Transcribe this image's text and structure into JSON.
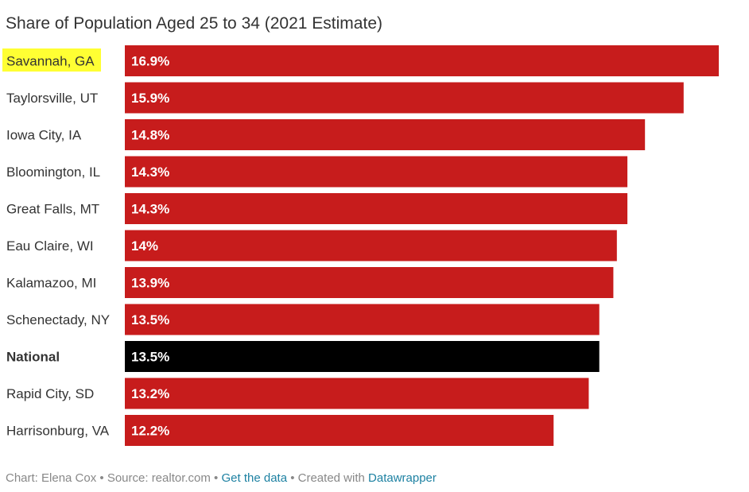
{
  "chart_data": {
    "type": "bar",
    "orientation": "horizontal",
    "title": "Share of Population Aged 25 to 34 (2021 Estimate)",
    "categories": [
      "Savannah, GA",
      "Taylorsville, UT",
      "Iowa City, IA",
      "Bloomington, IL",
      "Great Falls, MT",
      "Eau Claire, WI",
      "Kalamazoo, MI",
      "Schenectady, NY",
      "National",
      "Rapid City, SD",
      "Harrisonburg, VA"
    ],
    "values": [
      16.9,
      15.9,
      14.8,
      14.3,
      14.3,
      14,
      13.9,
      13.5,
      13.5,
      13.2,
      12.2
    ],
    "value_labels": [
      "16.9%",
      "15.9%",
      "14.8%",
      "14.3%",
      "14.3%",
      "14%",
      "13.9%",
      "13.5%",
      "13.5%",
      "13.2%",
      "12.2%"
    ],
    "unit": "%",
    "xlim": [
      0,
      16.9
    ],
    "grid": false,
    "colors": {
      "bar": "#c71c1c",
      "national_bar": "#000000",
      "highlight": "#ffff33",
      "value_label": "#ffffff",
      "category_label": "#333333"
    },
    "highlighted_category": "Savannah, GA",
    "bold_category": "National"
  },
  "footer": {
    "chart_by": "Chart: Elena Cox",
    "sep1": " • ",
    "source": "Source: realtor.com",
    "sep2": " • ",
    "get_data": "Get the data",
    "sep3": " • ",
    "created_with": "Created with ",
    "datawrapper": "Datawrapper",
    "link_color": "#1d81a2"
  }
}
